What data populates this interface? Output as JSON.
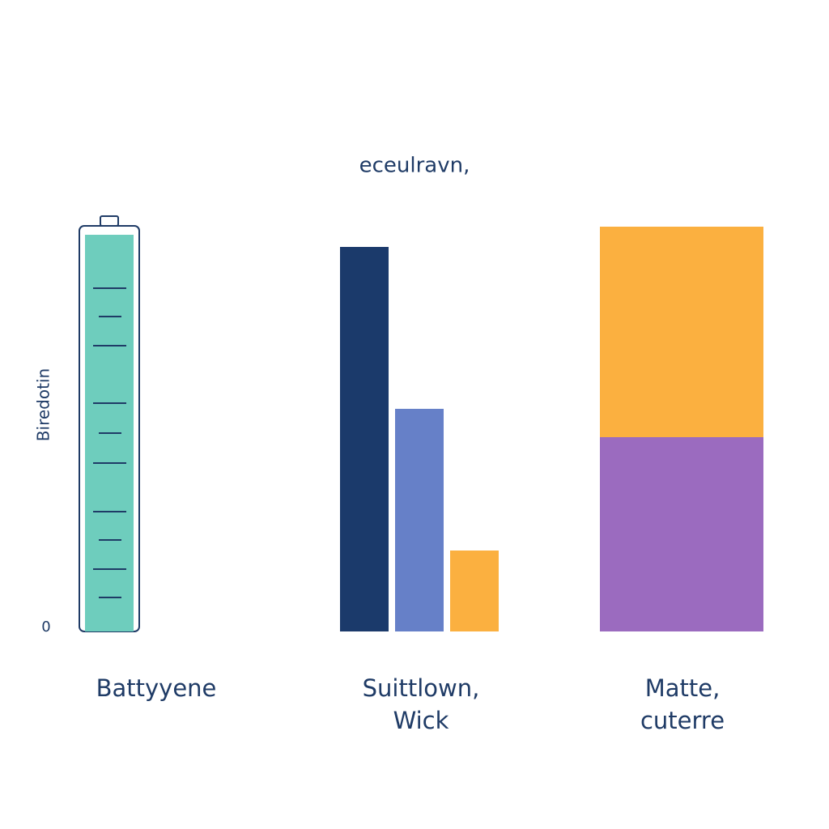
{
  "chart_data": {
    "type": "bar",
    "title": "eceulravn,",
    "ylabel": "Biredotin",
    "ylim": [
      0,
      100
    ],
    "yticks": [
      0
    ],
    "categories": [
      "Battyyene",
      "Suittlown, Wick",
      "Matte, cuterre"
    ],
    "groups": [
      {
        "type": "battery",
        "values": [
          98
        ],
        "colors": [
          "#6ecdbd"
        ]
      },
      {
        "type": "grouped",
        "values": [
          95,
          55,
          20
        ],
        "colors": [
          "#1b3a6b",
          "#6680c8",
          "#fbb040"
        ]
      },
      {
        "type": "stacked",
        "values": [
          48,
          52
        ],
        "colors": [
          "#9b6bbf",
          "#fbb040"
        ]
      }
    ]
  }
}
